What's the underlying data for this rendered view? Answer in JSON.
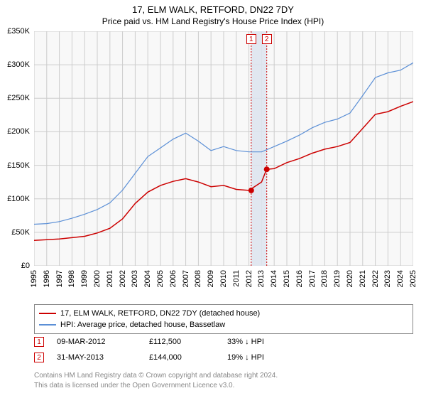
{
  "title": "17, ELM WALK, RETFORD, DN22 7DY",
  "subtitle": "Price paid vs. HM Land Registry's House Price Index (HPI)",
  "chart": {
    "type": "line",
    "background_color": "#f8f8f8",
    "grid_color": "#cccccc",
    "ylim": [
      0,
      350000
    ],
    "ytick_step": 50000,
    "yticks": [
      "£0",
      "£50K",
      "£100K",
      "£150K",
      "£200K",
      "£250K",
      "£300K",
      "£350K"
    ],
    "xlim": [
      1995,
      2025
    ],
    "xticks": [
      "1995",
      "1996",
      "1997",
      "1998",
      "1999",
      "2000",
      "2001",
      "2002",
      "2003",
      "2004",
      "2005",
      "2006",
      "2007",
      "2008",
      "2009",
      "2010",
      "2011",
      "2012",
      "2013",
      "2014",
      "2015",
      "2016",
      "2017",
      "2018",
      "2019",
      "2020",
      "2021",
      "2022",
      "2023",
      "2024",
      "2025"
    ],
    "series": [
      {
        "name": "price_paid",
        "label": "17, ELM WALK, RETFORD, DN22 7DY (detached house)",
        "color": "#cc0000",
        "line_width": 1.5,
        "data": [
          [
            1995,
            38000
          ],
          [
            1996,
            39000
          ],
          [
            1997,
            40000
          ],
          [
            1998,
            42000
          ],
          [
            1999,
            44000
          ],
          [
            2000,
            49000
          ],
          [
            2001,
            56000
          ],
          [
            2002,
            70000
          ],
          [
            2003,
            93000
          ],
          [
            2004,
            110000
          ],
          [
            2005,
            120000
          ],
          [
            2006,
            126000
          ],
          [
            2007,
            130000
          ],
          [
            2008,
            125000
          ],
          [
            2009,
            118000
          ],
          [
            2010,
            120000
          ],
          [
            2011,
            114000
          ],
          [
            2012,
            112500
          ],
          [
            2013,
            125000
          ],
          [
            2013.4,
            144000
          ],
          [
            2014,
            145000
          ],
          [
            2015,
            154000
          ],
          [
            2016,
            160000
          ],
          [
            2017,
            168000
          ],
          [
            2018,
            174000
          ],
          [
            2019,
            178000
          ],
          [
            2020,
            184000
          ],
          [
            2021,
            205000
          ],
          [
            2022,
            226000
          ],
          [
            2023,
            230000
          ],
          [
            2024,
            238000
          ],
          [
            2025,
            245000
          ]
        ]
      },
      {
        "name": "hpi",
        "label": "HPI: Average price, detached house, Bassetlaw",
        "color": "#5b8fd6",
        "line_width": 1.2,
        "data": [
          [
            1995,
            62000
          ],
          [
            1996,
            63000
          ],
          [
            1997,
            66000
          ],
          [
            1998,
            71000
          ],
          [
            1999,
            77000
          ],
          [
            2000,
            84000
          ],
          [
            2001,
            94000
          ],
          [
            2002,
            113000
          ],
          [
            2003,
            138000
          ],
          [
            2004,
            163000
          ],
          [
            2005,
            176000
          ],
          [
            2006,
            189000
          ],
          [
            2007,
            198000
          ],
          [
            2008,
            186000
          ],
          [
            2009,
            172000
          ],
          [
            2010,
            178000
          ],
          [
            2011,
            172000
          ],
          [
            2012,
            170000
          ],
          [
            2013,
            170000
          ],
          [
            2014,
            178000
          ],
          [
            2015,
            186000
          ],
          [
            2016,
            195000
          ],
          [
            2017,
            206000
          ],
          [
            2018,
            214000
          ],
          [
            2019,
            219000
          ],
          [
            2020,
            228000
          ],
          [
            2021,
            254000
          ],
          [
            2022,
            281000
          ],
          [
            2023,
            288000
          ],
          [
            2024,
            292000
          ],
          [
            2025,
            303000
          ]
        ]
      }
    ],
    "markers": [
      {
        "n": "1",
        "x": 2012.18,
        "color": "#cc0000",
        "point_y": 112500
      },
      {
        "n": "2",
        "x": 2013.41,
        "color": "#cc0000",
        "point_y": 144000
      }
    ]
  },
  "legend": {
    "border_color": "#888888"
  },
  "transactions": [
    {
      "n": "1",
      "date": "09-MAR-2012",
      "price": "£112,500",
      "delta": "33% ↓ HPI",
      "border_color": "#cc0000"
    },
    {
      "n": "2",
      "date": "31-MAY-2013",
      "price": "£144,000",
      "delta": "19% ↓ HPI",
      "border_color": "#cc0000"
    }
  ],
  "footnotes": [
    "Contains HM Land Registry data © Crown copyright and database right 2024.",
    "This data is licensed under the Open Government Licence v3.0."
  ]
}
